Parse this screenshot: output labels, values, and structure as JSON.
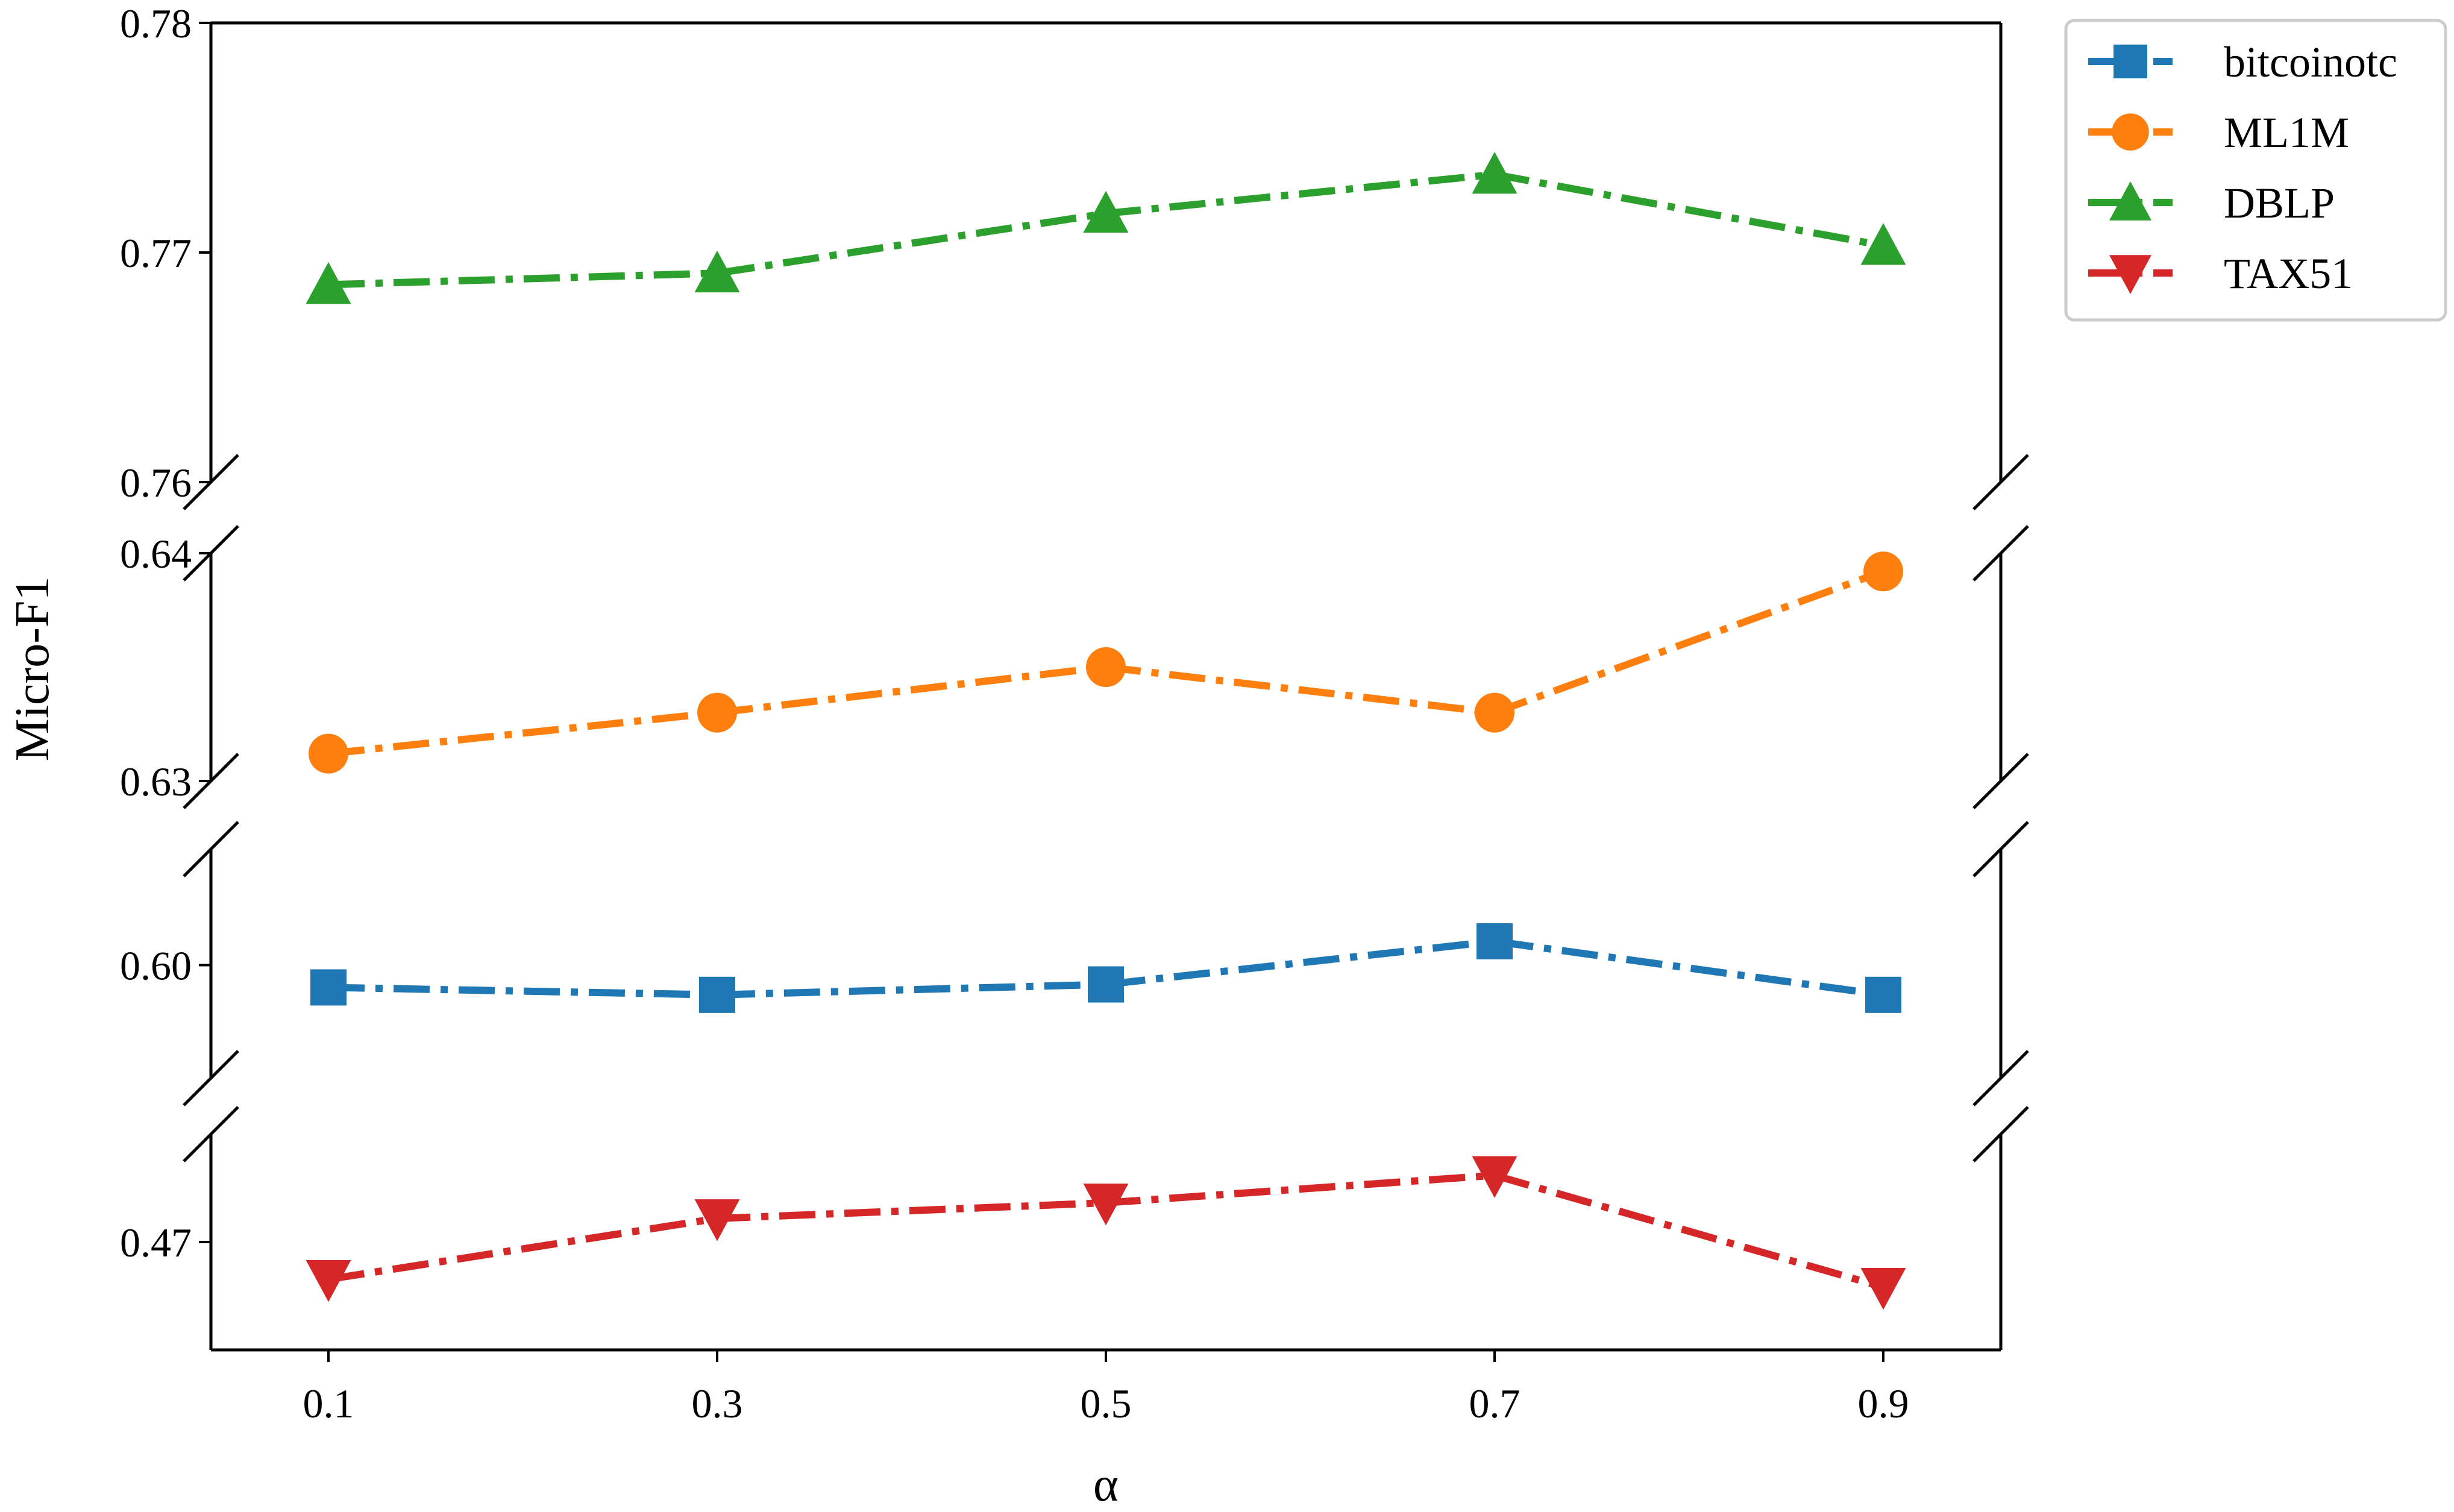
{
  "chart_data": {
    "type": "line",
    "xlabel": "α",
    "ylabel": "Micro-F1",
    "categories": [
      "0.1",
      "0.3",
      "0.5",
      "0.7",
      "0.9"
    ],
    "x": [
      0.1,
      0.3,
      0.5,
      0.7,
      0.9
    ],
    "grid": false,
    "legend_position": "top-right outside",
    "broken_axis": true,
    "panels": [
      {
        "series": "DBLP",
        "ylim": [
          0.76,
          0.78
        ],
        "yticks": [
          "0.76",
          "0.77",
          "0.78"
        ]
      },
      {
        "series": "ML1M",
        "ylim": [
          0.63,
          0.64
        ],
        "yticks": [
          "0.63",
          "0.64"
        ]
      },
      {
        "series": "bitcoinotc",
        "ylim": [
          0.5924,
          0.6078
        ],
        "yticks": [
          "0.60"
        ]
      },
      {
        "series": "TAX51",
        "ylim": [
          0.4645,
          0.4755
        ],
        "yticks": [
          "0.47"
        ]
      }
    ],
    "series": [
      {
        "name": "bitcoinotc",
        "color": "#1f77b4",
        "marker": "square",
        "values": [
          0.5985,
          0.598,
          0.5987,
          0.6016,
          0.598
        ]
      },
      {
        "name": "ML1M",
        "color": "#ff7f0e",
        "marker": "circle",
        "values": [
          0.6312,
          0.633,
          0.635,
          0.633,
          0.6392
        ]
      },
      {
        "name": "DBLP",
        "color": "#2ca02c",
        "marker": "triangle-up",
        "values": [
          0.7686,
          0.7691,
          0.7717,
          0.7734,
          0.7703
        ]
      },
      {
        "name": "TAX51",
        "color": "#d62728",
        "marker": "triangle-down",
        "values": [
          0.4681,
          0.4712,
          0.472,
          0.4734,
          0.4677
        ]
      }
    ]
  }
}
